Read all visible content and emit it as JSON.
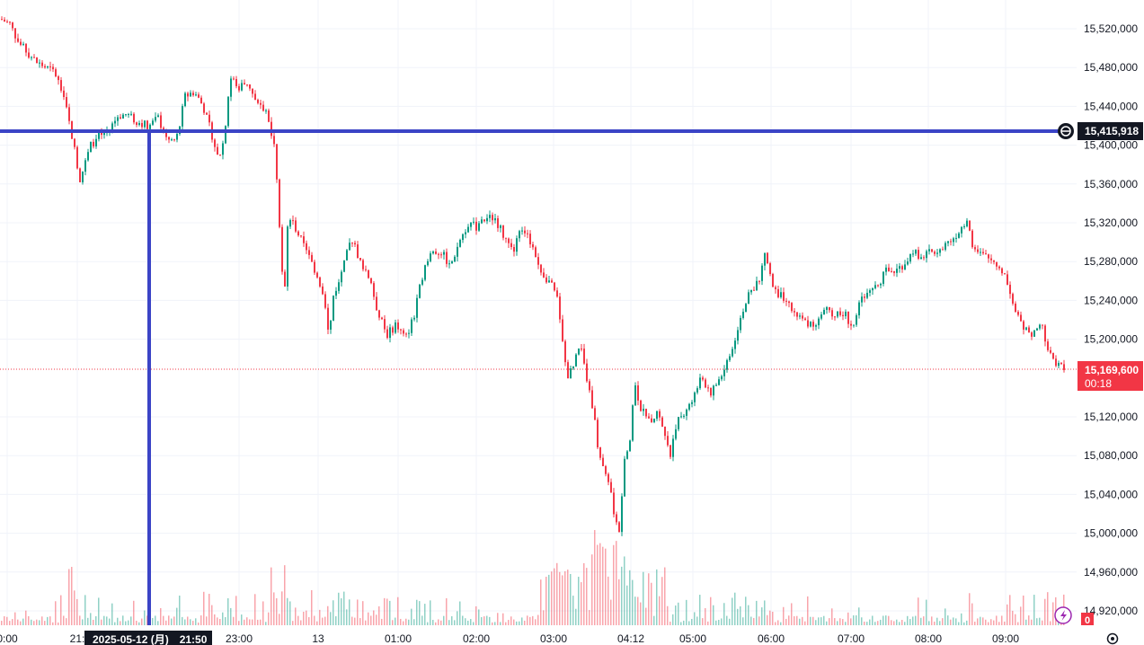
{
  "chart_data": {
    "type": "candlestick",
    "y_axis": {
      "ticks": [
        "15,520,000",
        "15,480,000",
        "15,440,000",
        "15,400,000",
        "15,360,000",
        "15,320,000",
        "15,280,000",
        "15,240,000",
        "15,200,000",
        "15,120,000",
        "15,080,000",
        "15,040,000",
        "15,000,000",
        "14,960,000",
        "14,920,000"
      ],
      "tick_values": [
        15520000,
        15480000,
        15440000,
        15400000,
        15360000,
        15320000,
        15280000,
        15240000,
        15200000,
        15120000,
        15080000,
        15040000,
        15000000,
        14960000,
        14920000
      ],
      "ylim": [
        14909000,
        15537000
      ]
    },
    "x_axis": {
      "ticks": [
        "0:00",
        "21:",
        "23:00",
        "13",
        "01:00",
        "02:00",
        "03:00",
        "04:12",
        "05:00",
        "06:00",
        "07:00",
        "08:00",
        "09:00"
      ],
      "range_start": "2025-05-12 20:00",
      "range_end": "2025-05-13 09:40"
    },
    "crosshair": {
      "price_label": "15,415,918",
      "price_value": 15415918,
      "time_label": "2025-05-12 (月)　21:50"
    },
    "last_price": {
      "label": "15,169,600",
      "value": 15169600,
      "countdown": "00:18"
    },
    "volume_badge": "0",
    "price_path": [
      [
        0,
        15530000
      ],
      [
        10,
        15525000
      ],
      [
        20,
        15505000
      ],
      [
        40,
        15485000
      ],
      [
        60,
        15475000
      ],
      [
        70,
        15450000
      ],
      [
        80,
        15405000
      ],
      [
        88,
        15365000
      ],
      [
        95,
        15385000
      ],
      [
        100,
        15400000
      ],
      [
        110,
        15410000
      ],
      [
        120,
        15415000
      ],
      [
        130,
        15430000
      ],
      [
        140,
        15432000
      ],
      [
        150,
        15425000
      ],
      [
        165,
        15420000
      ],
      [
        175,
        15428000
      ],
      [
        185,
        15405000
      ],
      [
        195,
        15405000
      ],
      [
        205,
        15450000
      ],
      [
        215,
        15455000
      ],
      [
        225,
        15440000
      ],
      [
        235,
        15410000
      ],
      [
        242,
        15385000
      ],
      [
        248,
        15405000
      ],
      [
        255,
        15470000
      ],
      [
        265,
        15460000
      ],
      [
        275,
        15465000
      ],
      [
        285,
        15440000
      ],
      [
        295,
        15435000
      ],
      [
        305,
        15400000
      ],
      [
        310,
        15320000
      ],
      [
        315,
        15240000
      ],
      [
        320,
        15330000
      ],
      [
        330,
        15310000
      ],
      [
        340,
        15290000
      ],
      [
        350,
        15270000
      ],
      [
        360,
        15245000
      ],
      [
        365,
        15200000
      ],
      [
        370,
        15245000
      ],
      [
        380,
        15270000
      ],
      [
        390,
        15305000
      ],
      [
        400,
        15280000
      ],
      [
        410,
        15265000
      ],
      [
        420,
        15225000
      ],
      [
        430,
        15205000
      ],
      [
        440,
        15215000
      ],
      [
        450,
        15200000
      ],
      [
        460,
        15225000
      ],
      [
        470,
        15270000
      ],
      [
        480,
        15290000
      ],
      [
        490,
        15290000
      ],
      [
        500,
        15275000
      ],
      [
        510,
        15300000
      ],
      [
        520,
        15320000
      ],
      [
        530,
        15315000
      ],
      [
        540,
        15325000
      ],
      [
        550,
        15325000
      ],
      [
        560,
        15305000
      ],
      [
        570,
        15290000
      ],
      [
        580,
        15315000
      ],
      [
        590,
        15300000
      ],
      [
        600,
        15270000
      ],
      [
        610,
        15260000
      ],
      [
        620,
        15240000
      ],
      [
        625,
        15200000
      ],
      [
        630,
        15160000
      ],
      [
        640,
        15180000
      ],
      [
        645,
        15200000
      ],
      [
        650,
        15165000
      ],
      [
        660,
        15125000
      ],
      [
        665,
        15085000
      ],
      [
        672,
        15060000
      ],
      [
        678,
        15045000
      ],
      [
        684,
        15010000
      ],
      [
        688,
        15000000
      ],
      [
        693,
        15070000
      ],
      [
        700,
        15100000
      ],
      [
        705,
        15155000
      ],
      [
        712,
        15130000
      ],
      [
        720,
        15115000
      ],
      [
        730,
        15125000
      ],
      [
        740,
        15100000
      ],
      [
        745,
        15080000
      ],
      [
        750,
        15110000
      ],
      [
        760,
        15125000
      ],
      [
        770,
        15140000
      ],
      [
        780,
        15160000
      ],
      [
        790,
        15145000
      ],
      [
        800,
        15160000
      ],
      [
        810,
        15180000
      ],
      [
        815,
        15195000
      ],
      [
        825,
        15230000
      ],
      [
        835,
        15250000
      ],
      [
        845,
        15265000
      ],
      [
        850,
        15290000
      ],
      [
        860,
        15250000
      ],
      [
        870,
        15245000
      ],
      [
        880,
        15230000
      ],
      [
        890,
        15220000
      ],
      [
        900,
        15215000
      ],
      [
        910,
        15220000
      ],
      [
        920,
        15230000
      ],
      [
        930,
        15225000
      ],
      [
        940,
        15225000
      ],
      [
        948,
        15210000
      ],
      [
        955,
        15240000
      ],
      [
        965,
        15245000
      ],
      [
        975,
        15255000
      ],
      [
        985,
        15270000
      ],
      [
        995,
        15270000
      ],
      [
        1005,
        15278000
      ],
      [
        1015,
        15290000
      ],
      [
        1025,
        15285000
      ],
      [
        1035,
        15290000
      ],
      [
        1045,
        15295000
      ],
      [
        1055,
        15300000
      ],
      [
        1065,
        15310000
      ],
      [
        1075,
        15325000
      ],
      [
        1080,
        15300000
      ],
      [
        1085,
        15290000
      ],
      [
        1095,
        15285000
      ],
      [
        1105,
        15280000
      ],
      [
        1115,
        15270000
      ],
      [
        1122,
        15255000
      ],
      [
        1128,
        15230000
      ],
      [
        1135,
        15215000
      ],
      [
        1145,
        15205000
      ],
      [
        1155,
        15215000
      ],
      [
        1160,
        15210000
      ],
      [
        1165,
        15190000
      ],
      [
        1170,
        15180000
      ],
      [
        1175,
        15175000
      ],
      [
        1180,
        15172000
      ],
      [
        1184,
        15169600
      ]
    ]
  }
}
